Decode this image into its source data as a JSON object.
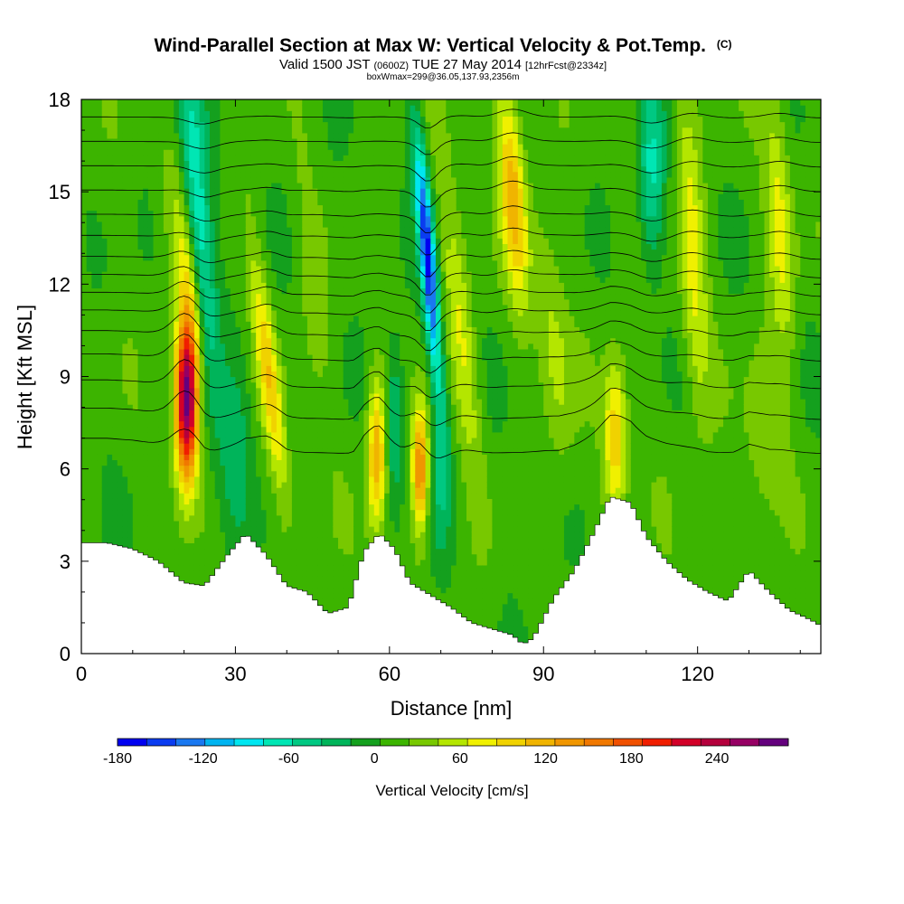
{
  "title": {
    "main": "Wind-Parallel Section at Max W: Vertical Velocity & Pot.Temp.",
    "main_mark": "(C)",
    "sub_pre": "Valid 1500 JST",
    "sub_paren": "(0600Z)",
    "sub_post": "TUE 27 May 2014",
    "sub_note": "[12hrFcst@2334z]",
    "line3": "boxWmax=299@36.05,137.93,2356m"
  },
  "chart_data": {
    "type": "heatmap",
    "xlabel": "Distance [nm]",
    "ylabel": "Height [Kft MSL]",
    "xlim": [
      0,
      144
    ],
    "ylim": [
      0,
      18
    ],
    "x_ticks": [
      0,
      30,
      60,
      90,
      120
    ],
    "y_ticks": [
      0,
      3,
      6,
      9,
      12,
      15,
      18
    ],
    "x_tick_labels": [
      "0",
      "30",
      "60",
      "90",
      "120"
    ],
    "y_tick_labels": [
      "0",
      "3",
      "6",
      "9",
      "12",
      "15",
      "18"
    ],
    "colorbar": {
      "title": "Vertical Velocity [cm/s]",
      "min": -180,
      "max": 270,
      "step": 20,
      "tick_values": [
        -180,
        -120,
        -60,
        0,
        60,
        120,
        180,
        240
      ],
      "tick_labels": [
        "-180",
        "-120",
        "-60",
        "0",
        "60",
        "120",
        "180",
        "240"
      ],
      "colors": [
        "#0000f0",
        "#0a3cf0",
        "#1a78f0",
        "#00b4f0",
        "#00e6f0",
        "#00e6b4",
        "#00c882",
        "#00b45a",
        "#14a01e",
        "#3cb400",
        "#78c800",
        "#b4e600",
        "#f0f000",
        "#f0d200",
        "#f0b400",
        "#f09600",
        "#f07800",
        "#f05000",
        "#f01e00",
        "#d20028",
        "#b4003c",
        "#960064",
        "#64007d"
      ]
    },
    "terrain_kft": [
      [
        0,
        3.6
      ],
      [
        5,
        3.6
      ],
      [
        10,
        3.4
      ],
      [
        15,
        3.0
      ],
      [
        20,
        2.3
      ],
      [
        24,
        2.2
      ],
      [
        28,
        3.1
      ],
      [
        32,
        3.9
      ],
      [
        36,
        3.2
      ],
      [
        40,
        2.2
      ],
      [
        44,
        2.0
      ],
      [
        48,
        1.3
      ],
      [
        52,
        1.5
      ],
      [
        55,
        3.3
      ],
      [
        58,
        3.9
      ],
      [
        61,
        3.4
      ],
      [
        64,
        2.3
      ],
      [
        67,
        2.0
      ],
      [
        72,
        1.5
      ],
      [
        76,
        1.0
      ],
      [
        80,
        0.8
      ],
      [
        84,
        0.6
      ],
      [
        86,
        0.3
      ],
      [
        88,
        0.5
      ],
      [
        92,
        1.8
      ],
      [
        96,
        2.7
      ],
      [
        100,
        4.0
      ],
      [
        103,
        5.1
      ],
      [
        107,
        4.9
      ],
      [
        110,
        3.8
      ],
      [
        114,
        3.0
      ],
      [
        118,
        2.4
      ],
      [
        122,
        2.0
      ],
      [
        126,
        1.7
      ],
      [
        130,
        2.7
      ],
      [
        134,
        2.0
      ],
      [
        138,
        1.4
      ],
      [
        142,
        1.1
      ],
      [
        144,
        0.9
      ]
    ],
    "w_features": [
      {
        "x": 20.5,
        "z": 8.3,
        "w": 270,
        "sx": 2.2,
        "sz": 2.6,
        "tilt": 0.0
      },
      {
        "x": 21.0,
        "z": 12.0,
        "w": 60,
        "sx": 2.5,
        "sz": 3.5,
        "tilt": -0.8
      },
      {
        "x": 23.0,
        "z": 13.5,
        "w": -90,
        "sx": 2.6,
        "sz": 6.0,
        "tilt": -0.4
      },
      {
        "x": 30.0,
        "z": 6.5,
        "w": -40,
        "sx": 3.0,
        "sz": 3.0,
        "tilt": 0.0
      },
      {
        "x": 36.5,
        "z": 9.0,
        "w": 80,
        "sx": 2.0,
        "sz": 4.0,
        "tilt": -0.7
      },
      {
        "x": 45.0,
        "z": 12.0,
        "w": 20,
        "sx": 3.0,
        "sz": 4.0,
        "tilt": -0.5
      },
      {
        "x": 57.5,
        "z": 6.5,
        "w": 110,
        "sx": 1.8,
        "sz": 2.4,
        "tilt": 0.0
      },
      {
        "x": 61.0,
        "z": 7.5,
        "w": -60,
        "sx": 1.7,
        "sz": 2.5,
        "tilt": 0.0
      },
      {
        "x": 66.0,
        "z": 6.0,
        "w": 140,
        "sx": 1.6,
        "sz": 2.0,
        "tilt": 0.0
      },
      {
        "x": 67.5,
        "z": 12.8,
        "w": -170,
        "sx": 1.5,
        "sz": 4.2,
        "tilt": -0.5
      },
      {
        "x": 70.0,
        "z": 6.0,
        "w": -45,
        "sx": 2.0,
        "sz": 2.5,
        "tilt": 0.0
      },
      {
        "x": 74.0,
        "z": 10.5,
        "w": 50,
        "sx": 2.5,
        "sz": 5.0,
        "tilt": -0.6
      },
      {
        "x": 84.0,
        "z": 15.0,
        "w": 100,
        "sx": 2.5,
        "sz": 3.5,
        "tilt": -0.4
      },
      {
        "x": 92.0,
        "z": 10.0,
        "w": 40,
        "sx": 3.0,
        "sz": 4.0,
        "tilt": -0.5
      },
      {
        "x": 104.0,
        "z": 7.0,
        "w": 90,
        "sx": 2.2,
        "sz": 2.5,
        "tilt": 0.0
      },
      {
        "x": 111.0,
        "z": 15.5,
        "w": -70,
        "sx": 2.5,
        "sz": 3.0,
        "tilt": 0.0
      },
      {
        "x": 119.0,
        "z": 13.0,
        "w": 60,
        "sx": 2.5,
        "sz": 5.0,
        "tilt": -0.3
      },
      {
        "x": 136.0,
        "z": 14.0,
        "w": 60,
        "sx": 2.5,
        "sz": 4.0,
        "tilt": -0.3
      },
      {
        "x": 133.0,
        "z": 7.0,
        "w": 30,
        "sx": 4.0,
        "sz": 3.0,
        "tilt": 0.0
      }
    ],
    "theta_levels_kft": [
      6.5,
      7.6,
      8.6,
      9.5,
      10.3,
      11.0,
      11.6,
      12.2,
      12.8,
      13.5,
      14.2,
      15.0,
      15.8,
      16.6,
      17.4
    ]
  }
}
